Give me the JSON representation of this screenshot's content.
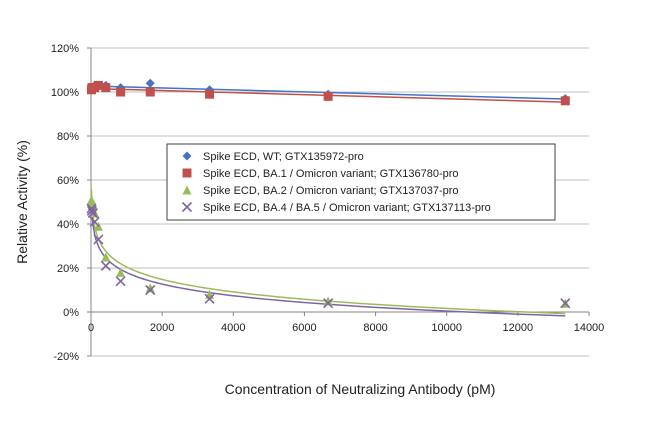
{
  "chart_data": {
    "type": "scatter",
    "title": "",
    "xlabel": "Concentration of Neutralizing Antibody (pM)",
    "ylabel": "Relative Activity (%)",
    "xlim": [
      0,
      14000
    ],
    "ylim": [
      -20,
      120
    ],
    "xticks": [
      0,
      2000,
      4000,
      6000,
      8000,
      10000,
      12000,
      14000
    ],
    "xtick_labels": [
      "0",
      "2000",
      "4000",
      "6000",
      "8000",
      "10000",
      "12000",
      "14000"
    ],
    "yticks": [
      -20,
      0,
      20,
      40,
      60,
      80,
      100,
      120
    ],
    "ytick_labels": [
      "-20%",
      "0%",
      "20%",
      "40%",
      "60%",
      "80%",
      "100%",
      "120%"
    ],
    "grid": "horizontal",
    "legend_position": "center-right",
    "series": [
      {
        "name": "Spike ECD, WT; GTX135972-pro",
        "marker": "diamond",
        "color": "#4472c4",
        "trendline_color": "#4472c4",
        "x": [
          13,
          26,
          52,
          104,
          208,
          416,
          833,
          1666,
          3333,
          6666,
          13333
        ],
        "y": [
          102,
          102,
          102,
          103,
          103,
          103,
          102,
          104,
          101,
          99,
          97
        ]
      },
      {
        "name": "Spike ECD, BA.1 / Omicron variant; GTX136780-pro",
        "marker": "square",
        "color": "#c0504d",
        "trendline_color": "#c0504d",
        "x": [
          13,
          26,
          52,
          104,
          208,
          416,
          833,
          1666,
          3333,
          6666,
          13333
        ],
        "y": [
          101,
          102,
          102,
          102,
          103,
          102,
          100,
          100,
          99,
          98,
          96
        ]
      },
      {
        "name": "Spike ECD, BA.2 / Omicron variant; GTX137037-pro",
        "marker": "triangle",
        "color": "#9bbb59",
        "trendline_color": "#9bbb59",
        "x": [
          13,
          26,
          52,
          104,
          208,
          416,
          833,
          1666,
          3333,
          6666,
          13333
        ],
        "y": [
          51,
          50,
          48,
          45,
          39,
          25,
          18,
          11,
          8,
          5,
          4
        ]
      },
      {
        "name": "Spike ECD, BA.4 / BA.5 / Omicron variant; GTX137113-pro",
        "marker": "x",
        "color": "#8064a2",
        "trendline_color": "#8064a2",
        "x": [
          13,
          26,
          52,
          104,
          208,
          416,
          833,
          1666,
          3333,
          6666,
          13333
        ],
        "y": [
          47,
          46,
          45,
          41,
          33,
          21,
          14,
          10,
          6,
          4,
          4
        ]
      }
    ]
  }
}
